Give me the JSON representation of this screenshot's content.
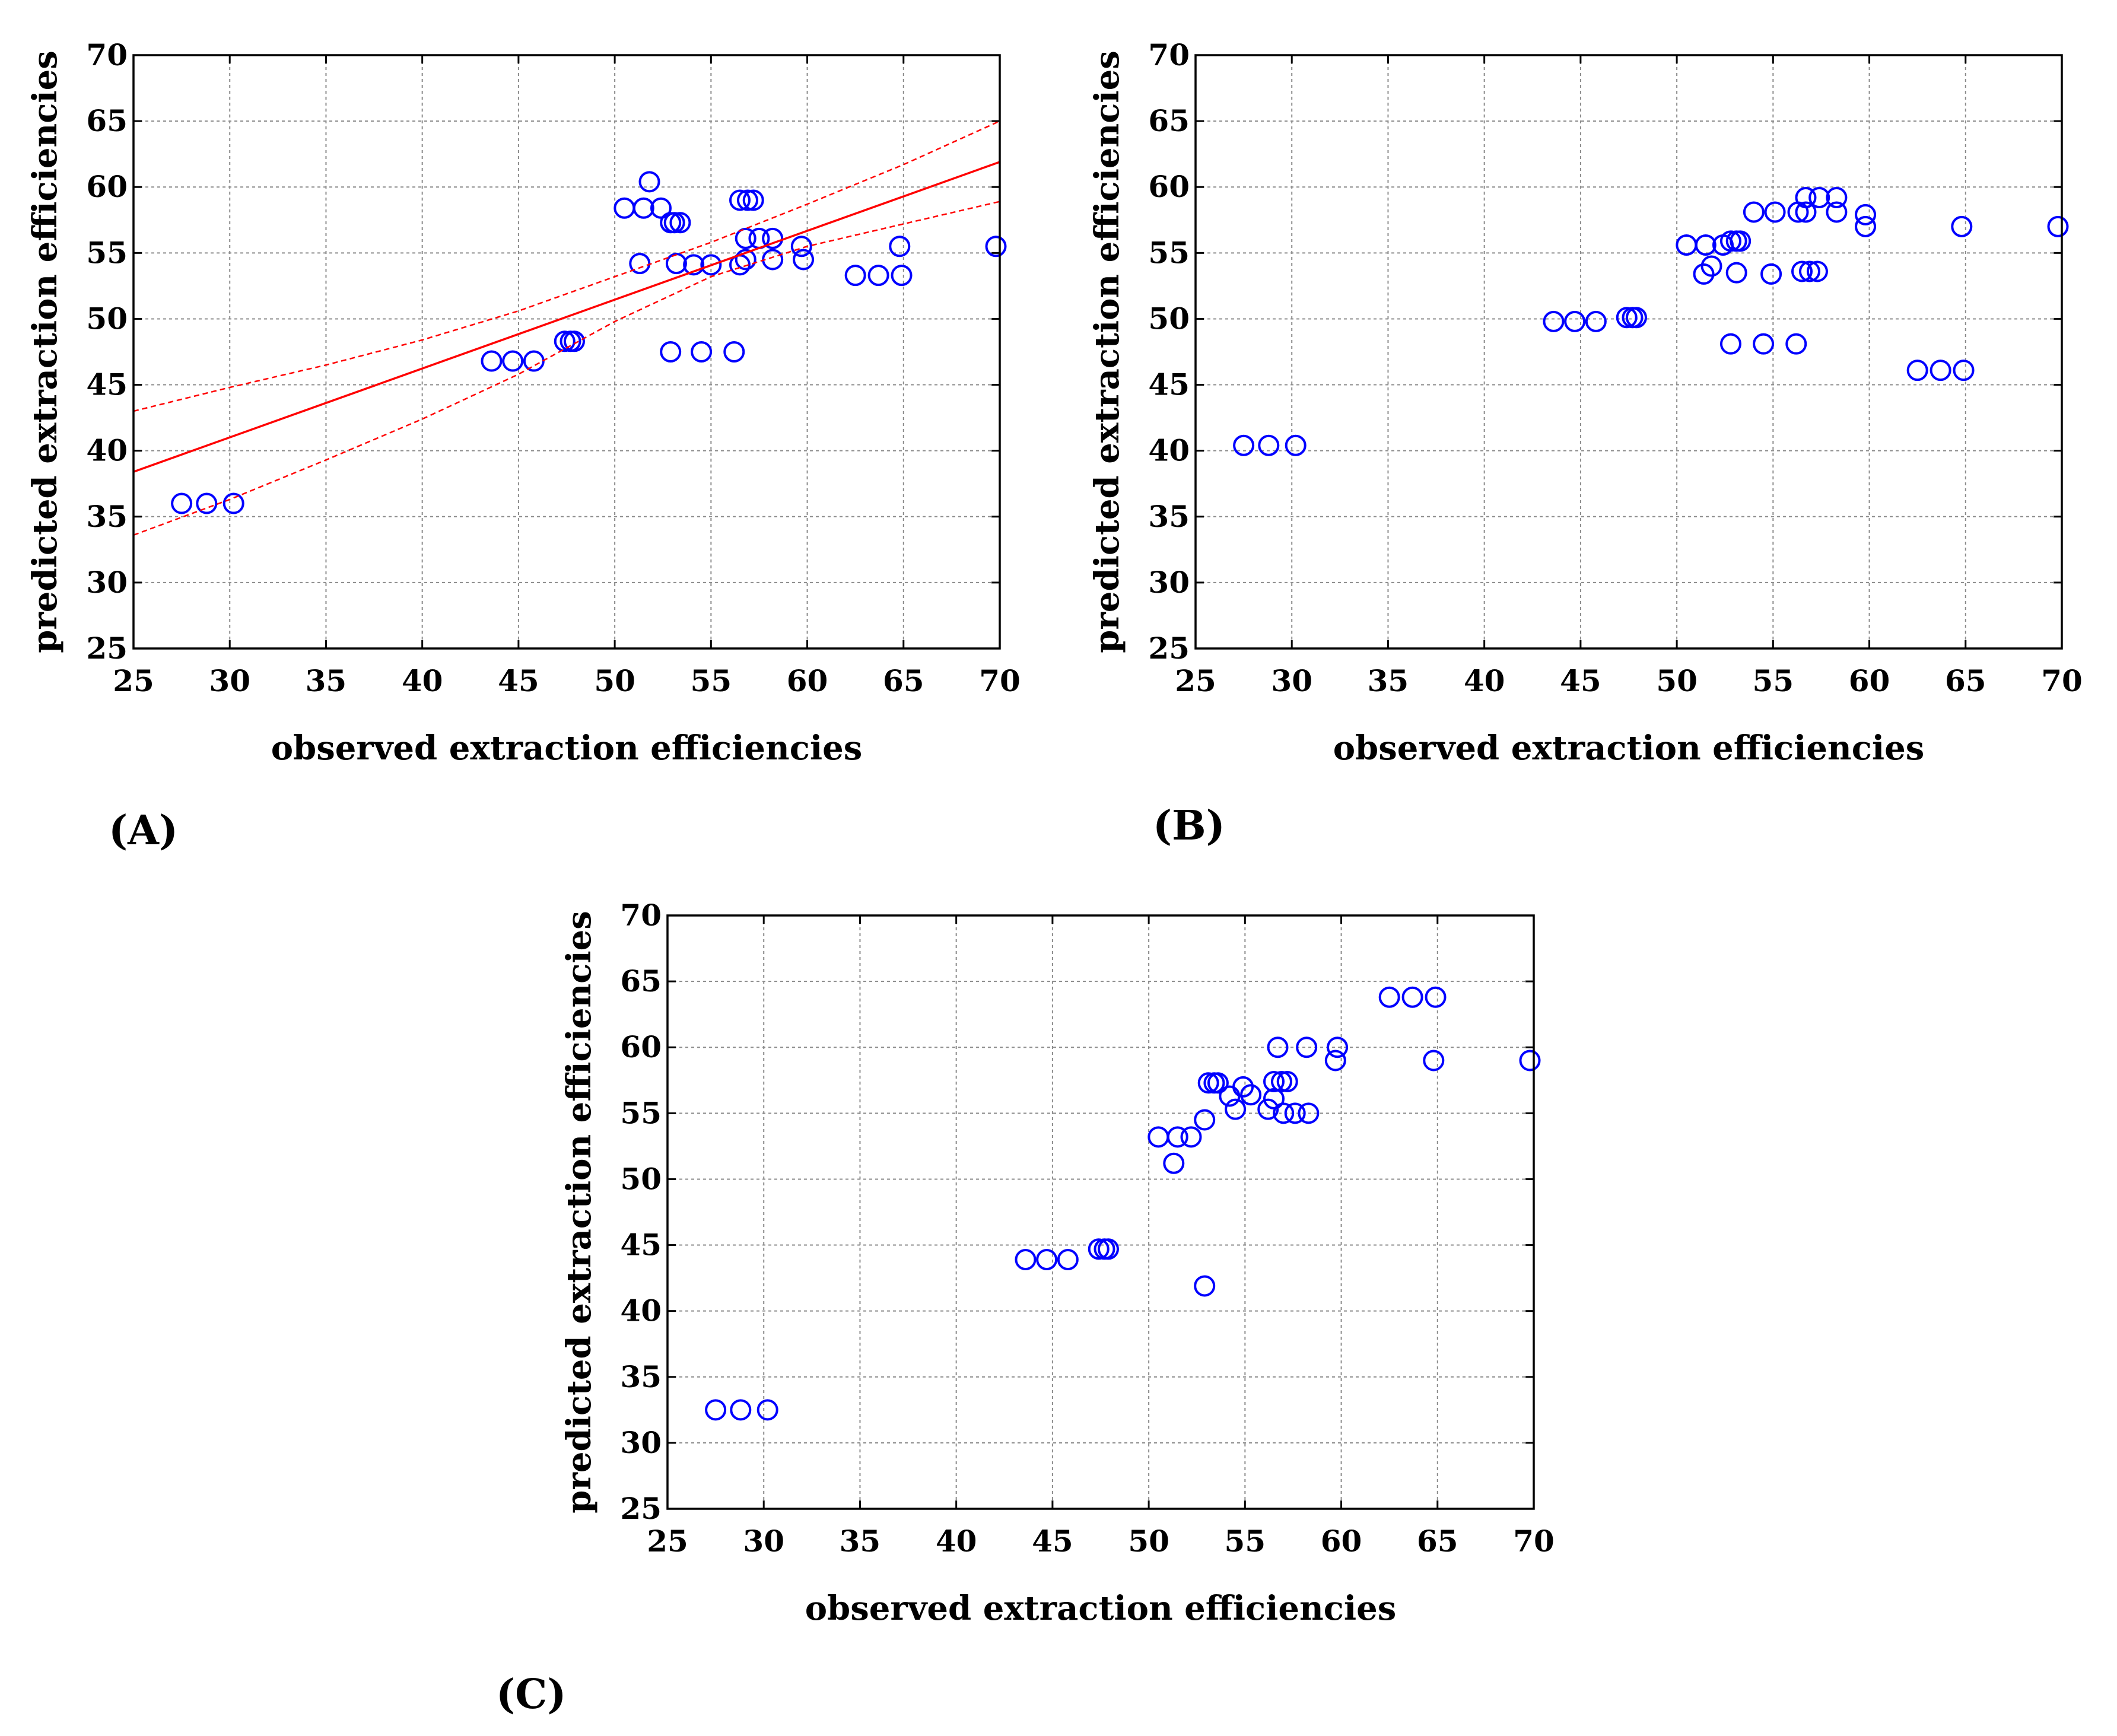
{
  "colors": {
    "points": "#0000ff",
    "fit": "#ff0000",
    "grid": "#8c8c8c",
    "axis": "#000000"
  },
  "panels": [
    {
      "letter": "(A)",
      "xlabel": "observed extraction efficiencies",
      "ylabel": "predicted extraction efficiencies"
    },
    {
      "letter": "(B)",
      "xlabel": "observed extraction efficiencies",
      "ylabel": "predicted extraction efficiencies"
    },
    {
      "letter": "(C)",
      "xlabel": "observed extraction efficiencies",
      "ylabel": "predicted extraction efficiencies"
    }
  ],
  "chart_data": [
    {
      "type": "scatter",
      "title": "",
      "panel": "(A)",
      "xlabel": "observed extraction efficiencies",
      "ylabel": "predicted extraction efficiencies",
      "xlim": [
        25,
        70
      ],
      "ylim": [
        25,
        70
      ],
      "xticks": [
        25,
        30,
        35,
        40,
        45,
        50,
        55,
        60,
        65,
        70
      ],
      "yticks": [
        25,
        30,
        35,
        40,
        45,
        50,
        55,
        60,
        65,
        70
      ],
      "grid": true,
      "series": [
        {
          "name": "observations",
          "marker": "open-circle",
          "points": [
            [
              27.5,
              36
            ],
            [
              28.8,
              36
            ],
            [
              30.2,
              36
            ],
            [
              43.6,
              46.8
            ],
            [
              44.7,
              46.8
            ],
            [
              45.8,
              46.8
            ],
            [
              47.4,
              48.3
            ],
            [
              47.7,
              48.3
            ],
            [
              47.9,
              48.3
            ],
            [
              50.5,
              58.4
            ],
            [
              51.5,
              58.4
            ],
            [
              51.8,
              60.4
            ],
            [
              52.4,
              58.4
            ],
            [
              52.9,
              57.3
            ],
            [
              53.1,
              57.3
            ],
            [
              53.4,
              57.3
            ],
            [
              51.3,
              54.2
            ],
            [
              53.2,
              54.2
            ],
            [
              54.1,
              54.1
            ],
            [
              55,
              54.1
            ],
            [
              56.5,
              54.1
            ],
            [
              56.8,
              54.5
            ],
            [
              56.5,
              59
            ],
            [
              56.9,
              59
            ],
            [
              57.2,
              59
            ],
            [
              56.8,
              56.1
            ],
            [
              57.5,
              56.1
            ],
            [
              58.2,
              56.1
            ],
            [
              58.2,
              54.5
            ],
            [
              59.7,
              55.5
            ],
            [
              59.8,
              54.5
            ],
            [
              52.9,
              47.5
            ],
            [
              54.5,
              47.5
            ],
            [
              56.2,
              47.5
            ],
            [
              62.5,
              53.3
            ],
            [
              63.7,
              53.3
            ],
            [
              64.9,
              53.3
            ],
            [
              64.8,
              55.5
            ],
            [
              69.8,
              55.5
            ]
          ]
        },
        {
          "name": "linear fit",
          "line": [
            [
              25,
              38.4
            ],
            [
              70,
              61.9
            ]
          ]
        },
        {
          "name": "95% confidence band upper",
          "style": "dashed",
          "line": [
            [
              25,
              43
            ],
            [
              30,
              44.8
            ],
            [
              35,
              46.5
            ],
            [
              40,
              48.4
            ],
            [
              45,
              50.6
            ],
            [
              50,
              53.2
            ],
            [
              55,
              55.8
            ],
            [
              60,
              58.7
            ],
            [
              65,
              61.7
            ],
            [
              70,
              65
            ]
          ]
        },
        {
          "name": "95% confidence band lower",
          "style": "dashed",
          "line": [
            [
              25,
              33.6
            ],
            [
              30,
              36.3
            ],
            [
              35,
              39.3
            ],
            [
              40,
              42.4
            ],
            [
              45,
              45.8
            ],
            [
              50,
              49.8
            ],
            [
              55,
              53.2
            ],
            [
              60,
              55.5
            ],
            [
              65,
              57.2
            ],
            [
              70,
              58.9
            ]
          ]
        }
      ]
    },
    {
      "type": "scatter",
      "title": "",
      "panel": "(B)",
      "xlabel": "observed extraction efficiencies",
      "ylabel": "predicted extraction efficiencies",
      "xlim": [
        25,
        70
      ],
      "ylim": [
        25,
        70
      ],
      "xticks": [
        25,
        30,
        35,
        40,
        45,
        50,
        55,
        60,
        65,
        70
      ],
      "yticks": [
        25,
        30,
        35,
        40,
        45,
        50,
        55,
        60,
        65,
        70
      ],
      "grid": true,
      "series": [
        {
          "name": "observations",
          "marker": "open-circle",
          "points": [
            [
              27.5,
              40.4
            ],
            [
              28.8,
              40.4
            ],
            [
              30.2,
              40.4
            ],
            [
              43.6,
              49.8
            ],
            [
              44.7,
              49.8
            ],
            [
              45.8,
              49.8
            ],
            [
              47.4,
              50.1
            ],
            [
              47.7,
              50.1
            ],
            [
              47.9,
              50.1
            ],
            [
              50.5,
              55.6
            ],
            [
              51.5,
              55.6
            ],
            [
              52.4,
              55.6
            ],
            [
              52.8,
              55.9
            ],
            [
              53.1,
              55.9
            ],
            [
              53.3,
              55.9
            ],
            [
              51.4,
              53.4
            ],
            [
              51.8,
              54
            ],
            [
              53.1,
              53.5
            ],
            [
              54.9,
              53.4
            ],
            [
              56.5,
              53.6
            ],
            [
              56.9,
              53.6
            ],
            [
              57.3,
              53.6
            ],
            [
              54,
              58.1
            ],
            [
              55.1,
              58.1
            ],
            [
              56.3,
              58.1
            ],
            [
              56.7,
              58.1
            ],
            [
              56.7,
              59.2
            ],
            [
              57.4,
              59.2
            ],
            [
              58.3,
              59.2
            ],
            [
              58.3,
              58.1
            ],
            [
              59.8,
              57.9
            ],
            [
              59.8,
              57
            ],
            [
              64.8,
              57
            ],
            [
              69.8,
              57
            ],
            [
              52.8,
              48.1
            ],
            [
              54.5,
              48.1
            ],
            [
              56.2,
              48.1
            ],
            [
              62.5,
              46.1
            ],
            [
              63.7,
              46.1
            ],
            [
              64.9,
              46.1
            ]
          ]
        }
      ]
    },
    {
      "type": "scatter",
      "title": "",
      "panel": "(C)",
      "xlabel": "observed extraction efficiencies",
      "ylabel": "predicted extraction efficiencies",
      "xlim": [
        25,
        70
      ],
      "ylim": [
        25,
        70
      ],
      "xticks": [
        25,
        30,
        35,
        40,
        45,
        50,
        55,
        60,
        65,
        70
      ],
      "yticks": [
        25,
        30,
        35,
        40,
        45,
        50,
        55,
        60,
        65,
        70
      ],
      "grid": true,
      "series": [
        {
          "name": "observations",
          "marker": "open-circle",
          "points": [
            [
              27.5,
              32.5
            ],
            [
              28.8,
              32.5
            ],
            [
              30.2,
              32.5
            ],
            [
              43.6,
              43.9
            ],
            [
              44.7,
              43.9
            ],
            [
              45.8,
              43.9
            ],
            [
              47.4,
              44.7
            ],
            [
              47.7,
              44.7
            ],
            [
              47.9,
              44.7
            ],
            [
              52.9,
              41.9
            ],
            [
              50.5,
              53.2
            ],
            [
              51.5,
              53.2
            ],
            [
              52.2,
              53.2
            ],
            [
              51.3,
              51.2
            ],
            [
              52.9,
              54.5
            ],
            [
              53.1,
              57.3
            ],
            [
              53.4,
              57.3
            ],
            [
              53.6,
              57.3
            ],
            [
              54.2,
              56.3
            ],
            [
              54.5,
              55.3
            ],
            [
              54.9,
              57
            ],
            [
              55.3,
              56.4
            ],
            [
              56.2,
              55.3
            ],
            [
              56.5,
              57.4
            ],
            [
              56.9,
              57.4
            ],
            [
              57.2,
              57.4
            ],
            [
              56.7,
              60
            ],
            [
              56.5,
              56.1
            ],
            [
              57,
              55
            ],
            [
              57.6,
              55
            ],
            [
              58.3,
              55
            ],
            [
              58.2,
              60
            ],
            [
              59.7,
              59
            ],
            [
              59.8,
              60
            ],
            [
              62.5,
              63.8
            ],
            [
              63.7,
              63.8
            ],
            [
              64.9,
              63.8
            ],
            [
              64.8,
              59
            ],
            [
              69.8,
              59
            ]
          ]
        }
      ]
    }
  ]
}
